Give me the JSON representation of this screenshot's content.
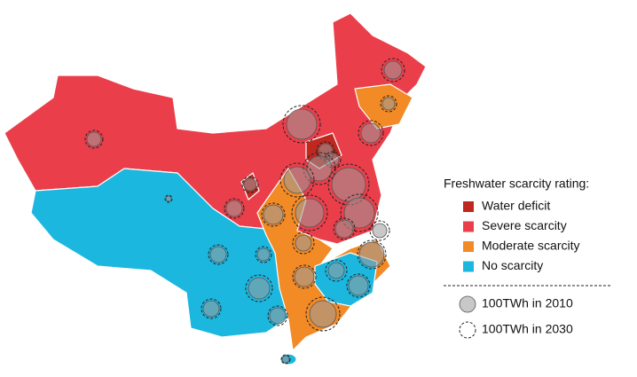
{
  "legend": {
    "title": "Freshwater scarcity rating:",
    "ratings": [
      {
        "label": "Water deficit",
        "color": "#c0281f"
      },
      {
        "label": "Severe scarcity",
        "color": "#ea3f4a"
      },
      {
        "label": "Moderate scarcity",
        "color": "#f28a26"
      },
      {
        "label": "No scarcity",
        "color": "#1cb7df"
      }
    ],
    "sizes": [
      "100TWh in 2010",
      "100TWh in 2030"
    ]
  }
}
